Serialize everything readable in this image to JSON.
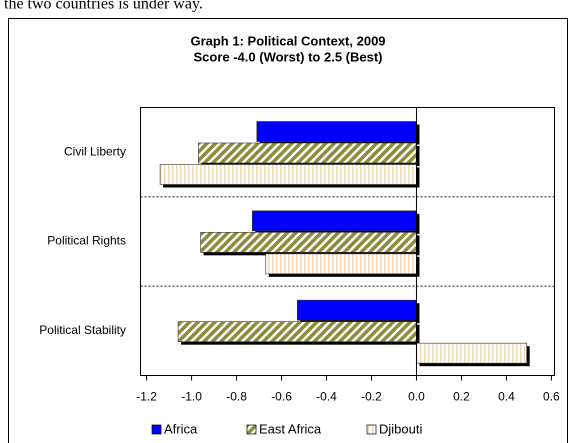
{
  "caption": "the two countries is under way.",
  "chart_data": {
    "type": "hbar",
    "title": "Graph 1:  Political Context, 2009",
    "subtitle": "Score -4.0 (Worst) to 2.5 (Best)",
    "categories": [
      "Civil Liberty",
      "Political Rights",
      "Political Stability"
    ],
    "series": [
      {
        "name": "Africa",
        "color": "#0000ff",
        "values": [
          -0.71,
          -0.73,
          -0.53
        ]
      },
      {
        "name": "East Africa",
        "color": "#8c8c3c",
        "values": [
          -0.97,
          -0.96,
          -1.06
        ]
      },
      {
        "name": "Djibouti",
        "color": "#f0d8b8",
        "values": [
          -1.14,
          -0.67,
          0.49
        ]
      }
    ],
    "xlim": [
      -1.2,
      0.6
    ],
    "xticks": [
      -1.2,
      -1.0,
      -0.8,
      -0.6,
      -0.4,
      -0.2,
      0.0,
      0.2,
      0.4,
      0.6
    ],
    "xtick_labels": [
      "-1.2",
      "-1.0",
      "-0.8",
      "-0.6",
      "-0.4",
      "-0.2",
      "0.0",
      "0.2",
      "0.4",
      "0.6"
    ],
    "legend": "bottom"
  }
}
